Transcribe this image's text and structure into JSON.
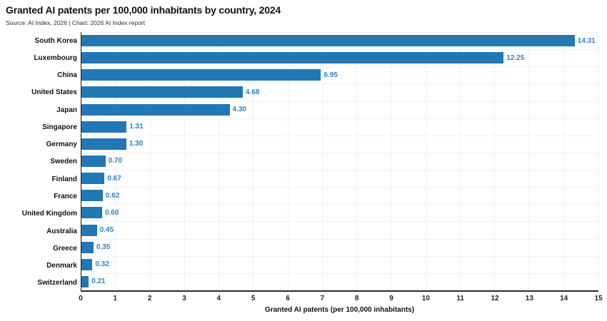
{
  "header": {
    "title": "Granted AI patents per 100,000 inhabitants by country, 2024",
    "source": "Source: AI Index, 2026 | Chart: 2026 AI Index report"
  },
  "chart_data": {
    "type": "bar",
    "orientation": "horizontal",
    "title": "Granted AI patents per 100,000 inhabitants by country, 2024",
    "subtitle": "Source: AI Index, 2026 | Chart: 2026 AI Index report",
    "categories": [
      "South Korea",
      "Luxembourg",
      "China",
      "United States",
      "Japan",
      "Singapore",
      "Germany",
      "Sweden",
      "Finland",
      "France",
      "United Kingdom",
      "Australia",
      "Greece",
      "Denmark",
      "Switzerland"
    ],
    "values": [
      14.31,
      12.25,
      6.95,
      4.68,
      4.3,
      1.31,
      1.3,
      0.7,
      0.67,
      0.62,
      0.6,
      0.45,
      0.35,
      0.32,
      0.21
    ],
    "value_labels": [
      "14.31",
      "12.25",
      "6.95",
      "4.68",
      "4.30",
      "1.31",
      "1.30",
      "0.70",
      "0.67",
      "0.62",
      "0.60",
      "0.45",
      "0.35",
      "0.32",
      "0.21"
    ],
    "xlabel": "Granted AI patents (per 100,000 inhabitants)",
    "ylabel": "",
    "xlim": [
      0,
      15
    ],
    "xticks": [
      0,
      1,
      2,
      3,
      4,
      5,
      6,
      7,
      8,
      9,
      10,
      11,
      12,
      13,
      14,
      15
    ],
    "grid": true,
    "legend_position": "none",
    "bar_color": "#2277b5",
    "value_label_color": "#2e82c6",
    "gridline_color": "#f1f1f1"
  }
}
